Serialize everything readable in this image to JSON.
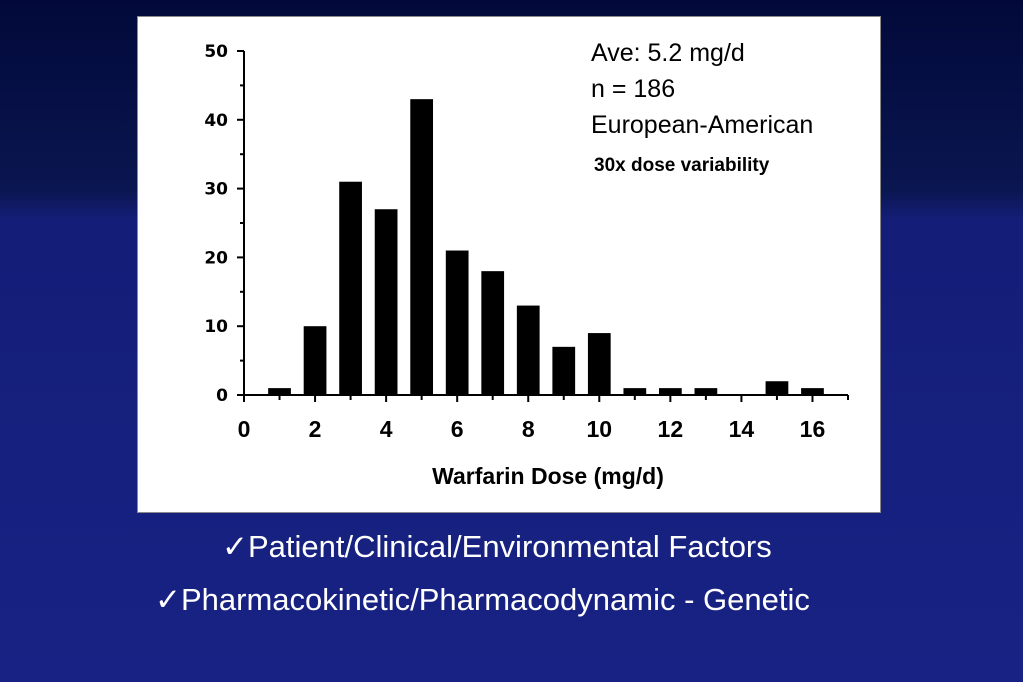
{
  "chart_data": {
    "type": "bar",
    "x": [
      1,
      2,
      3,
      4,
      5,
      6,
      7,
      8,
      9,
      10,
      11,
      12,
      13,
      14,
      15,
      16
    ],
    "values": [
      1,
      10,
      31,
      27,
      43,
      21,
      18,
      13,
      7,
      9,
      1,
      1,
      1,
      0,
      2,
      1
    ],
    "xlabel": "Warfarin Dose (mg/d)",
    "ylabel": "",
    "xlim": [
      0,
      17
    ],
    "ylim": [
      0,
      50
    ],
    "x_ticks": [
      "0",
      "2",
      "4",
      "6",
      "8",
      "10",
      "12",
      "14",
      "16"
    ],
    "y_ticks": [
      "0",
      "10",
      "20",
      "30",
      "40",
      "50"
    ],
    "bar_color": "#000000",
    "grid": false,
    "annotations": {
      "average": "Ave:  5.2 mg/d",
      "n": "n = 186",
      "population": "European-American",
      "variability": "30x dose variability"
    }
  },
  "bullets": [
    {
      "check": "✓",
      "text": "Patient/Clinical/Environmental Factors"
    },
    {
      "check": "✓",
      "text": "Pharmacokinetic/Pharmacodynamic - Genetic"
    }
  ],
  "colors": {
    "background_top": "#02093a",
    "background_bottom": "#182284",
    "panel": "#ffffff",
    "bullet_text": "#ffffff"
  }
}
